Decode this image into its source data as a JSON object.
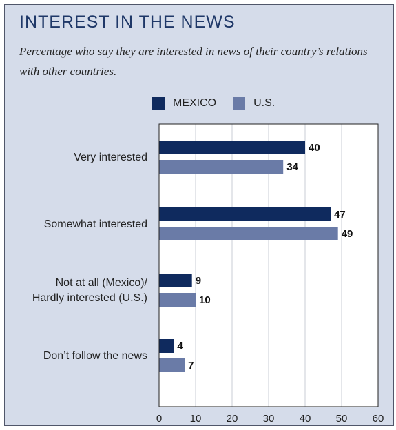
{
  "title": "INTEREST IN THE NEWS",
  "subtitle": "Percentage who say they are interested in news of their country’s relations with other countries.",
  "colors": {
    "background": "#d5dcea",
    "plot_background": "#ffffff",
    "title": "#1f3868",
    "mexico": "#0f2a5e",
    "us": "#6a7ba7",
    "grid": "#c9cdd6"
  },
  "chart_data": {
    "type": "bar",
    "orientation": "horizontal",
    "categories": [
      [
        "Very interested"
      ],
      [
        "Somewhat interested"
      ],
      [
        "Not at all (Mexico)/",
        "Hardly interested (U.S.)"
      ],
      [
        "Don’t follow the news"
      ]
    ],
    "series": [
      {
        "name": "MEXICO",
        "values": [
          40,
          47,
          9,
          4
        ]
      },
      {
        "name": "U.S.",
        "values": [
          34,
          49,
          10,
          7
        ]
      }
    ],
    "xlim": [
      0,
      60
    ],
    "xticks": [
      0,
      10,
      20,
      30,
      40,
      50,
      60
    ],
    "grid": true,
    "legend_position": "top",
    "data_labels": true
  }
}
